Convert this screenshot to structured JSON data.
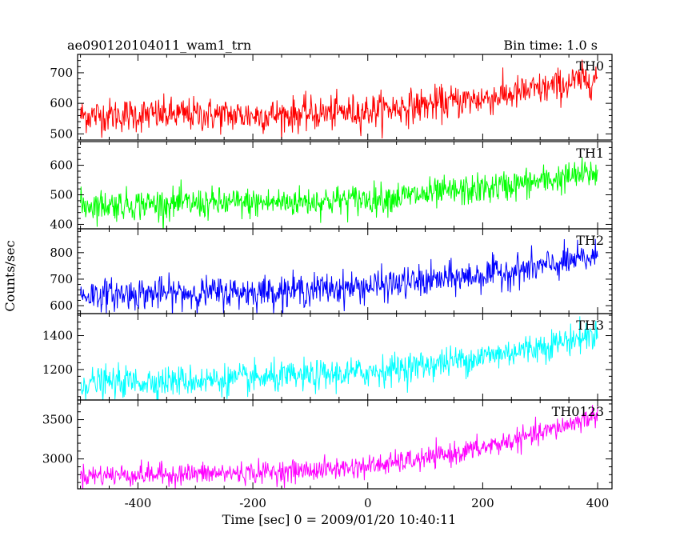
{
  "header": {
    "title": "ae090120104011_wam1_trn",
    "bin_time": "Bin time: 1.0 s"
  },
  "chart_data": {
    "type": "line",
    "title": "ae090120104011_wam1_trn",
    "subtitle": "Bin time: 1.0 s",
    "xlabel": "Time [sec] 0 = 2009/01/20 10:40:11",
    "ylabel": "Counts/sec",
    "xlim": [
      -505,
      425
    ],
    "xticks": [
      -400,
      -200,
      0,
      200,
      400
    ],
    "grid": false,
    "panels": [
      {
        "name": "TH0",
        "color": "#ff0000",
        "ylim": [
          480,
          760
        ],
        "yticks": [
          500,
          600,
          700
        ],
        "trend_x": [
          -500,
          -400,
          -300,
          -200,
          -100,
          0,
          100,
          200,
          300,
          400
        ],
        "trend_y": [
          560,
          562,
          563,
          560,
          565,
          575,
          595,
          615,
          645,
          685
        ],
        "noise_std": 28
      },
      {
        "name": "TH1",
        "color": "#00ff00",
        "ylim": [
          385,
          680
        ],
        "yticks": [
          400,
          500,
          600
        ],
        "trend_x": [
          -500,
          -400,
          -300,
          -200,
          -100,
          0,
          100,
          200,
          300,
          400
        ],
        "trend_y": [
          465,
          468,
          470,
          472,
          478,
          485,
          500,
          520,
          545,
          575
        ],
        "noise_std": 26
      },
      {
        "name": "TH2",
        "color": "#0000ff",
        "ylim": [
          570,
          890
        ],
        "yticks": [
          600,
          700,
          800
        ],
        "trend_x": [
          -500,
          -400,
          -300,
          -200,
          -100,
          0,
          100,
          200,
          300,
          400
        ],
        "trend_y": [
          640,
          645,
          648,
          652,
          660,
          672,
          692,
          715,
          745,
          785
        ],
        "noise_std": 30
      },
      {
        "name": "TH3",
        "color": "#00ffff",
        "ylim": [
          1020,
          1530
        ],
        "yticks": [
          1200,
          1400
        ],
        "trend_x": [
          -500,
          -400,
          -300,
          -200,
          -100,
          0,
          100,
          200,
          300,
          400
        ],
        "trend_y": [
          1120,
          1128,
          1135,
          1145,
          1160,
          1185,
          1225,
          1275,
          1335,
          1410
        ],
        "noise_std": 45
      },
      {
        "name": "TH0123",
        "color": "#ff00ff",
        "ylim": [
          2620,
          3750
        ],
        "yticks": [
          3000,
          3500
        ],
        "trend_x": [
          -500,
          -400,
          -300,
          -200,
          -100,
          0,
          100,
          200,
          300,
          400
        ],
        "trend_y": [
          2790,
          2800,
          2810,
          2825,
          2855,
          2905,
          3000,
          3140,
          3320,
          3560
        ],
        "noise_std": 70
      }
    ]
  }
}
